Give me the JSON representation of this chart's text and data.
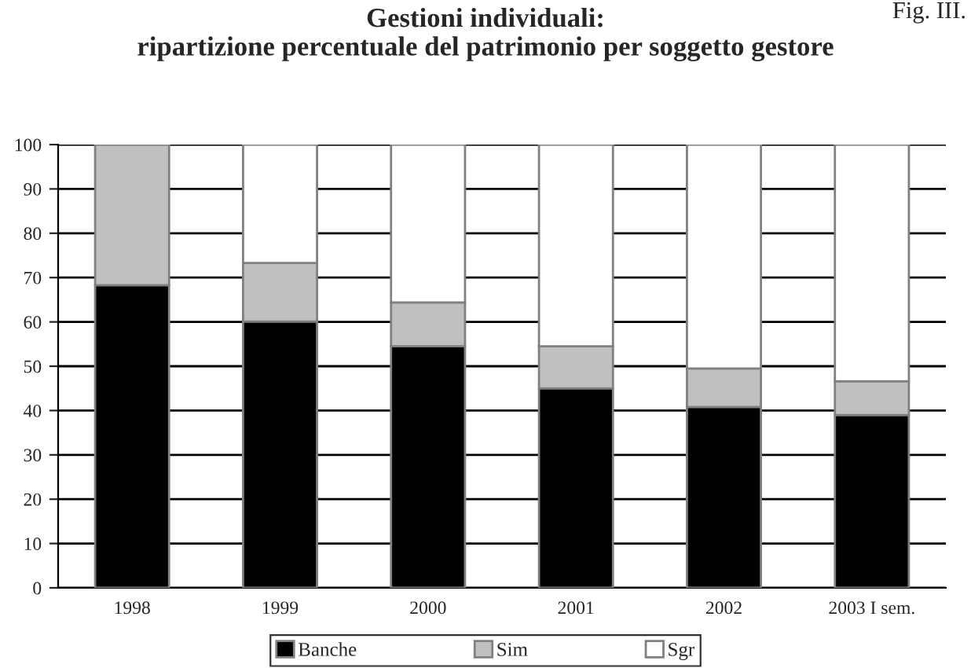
{
  "chart_data": {
    "type": "bar",
    "title": "Gestioni individuali:\nripartizione percentuale del patrimonio per soggetto gestore",
    "annotations": [
      "Fig. III."
    ],
    "categories": [
      "1998",
      "1999",
      "2000",
      "2001",
      "2002",
      "2003 I sem."
    ],
    "stacked": true,
    "series": [
      {
        "name": "Banche",
        "color": "#000000",
        "values": [
          68.3,
          60.1,
          54.5,
          45.0,
          40.8,
          39.0
        ]
      },
      {
        "name": "Sim",
        "color": "#c0c0c0",
        "values": [
          31.7,
          13.2,
          9.9,
          9.5,
          8.7,
          7.6
        ]
      },
      {
        "name": "Sgr",
        "color": "#ffffff",
        "values": [
          0,
          26.7,
          35.6,
          45.5,
          50.5,
          53.4
        ]
      }
    ],
    "ylim": [
      0,
      100
    ],
    "yticks": [
      0,
      10,
      20,
      30,
      40,
      50,
      60,
      70,
      80,
      90,
      100
    ],
    "grid": "y",
    "legend": "bottom"
  }
}
